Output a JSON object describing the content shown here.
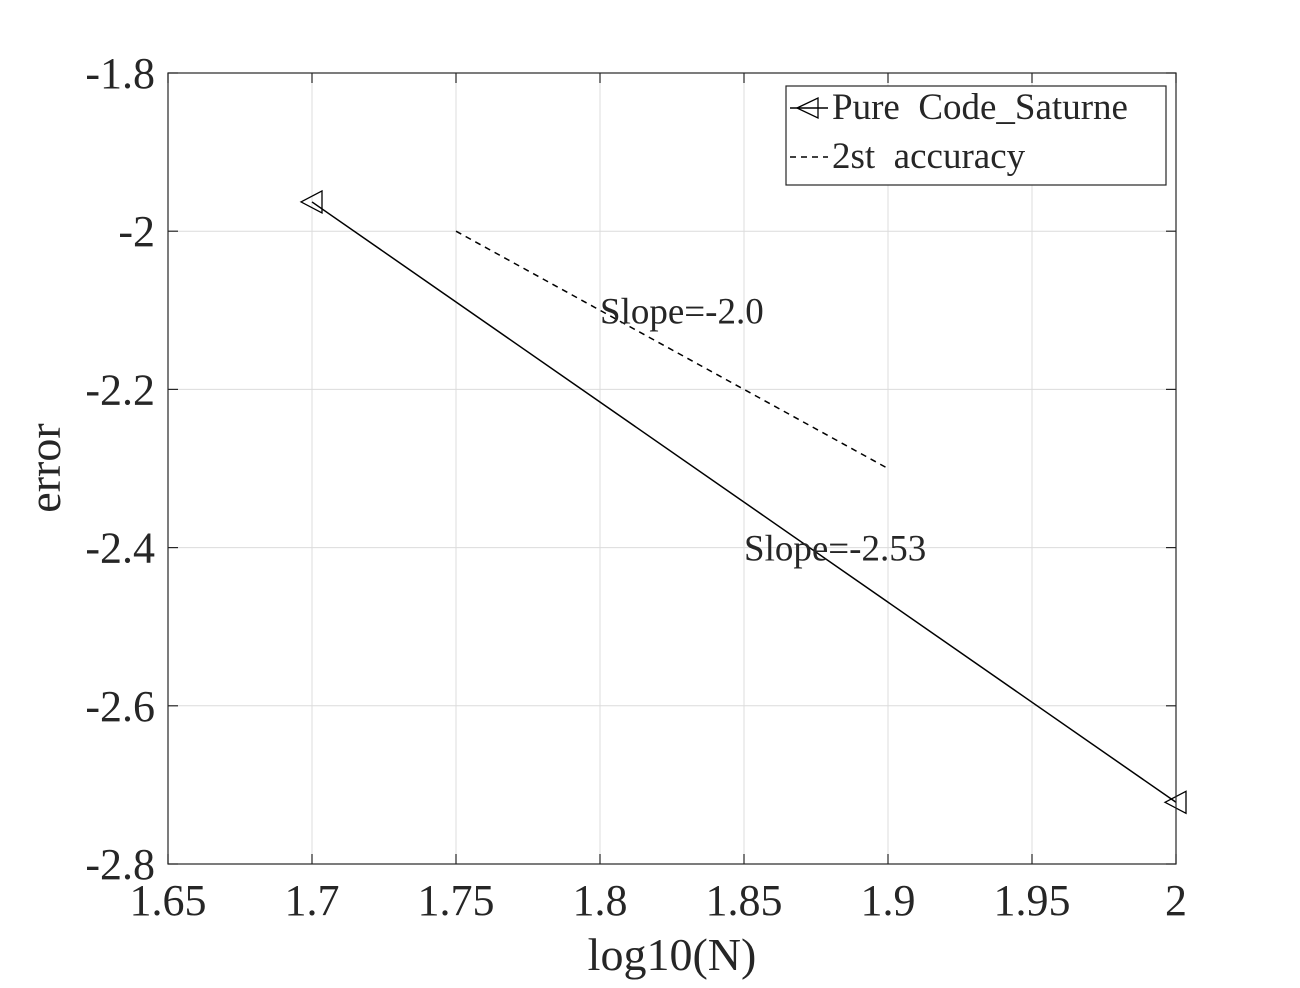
{
  "chart_data": {
    "type": "line",
    "title": "",
    "xlabel": "log10(N)",
    "ylabel": "error",
    "xlim": [
      1.65,
      2.0
    ],
    "ylim": [
      -2.8,
      -1.8
    ],
    "grid": true,
    "xticks": [
      1.65,
      1.7,
      1.75,
      1.8,
      1.85,
      1.9,
      1.95,
      2.0
    ],
    "xtick_labels": [
      "1.65",
      "1.7",
      "1.75",
      "1.8",
      "1.85",
      "1.9",
      "1.95",
      "2"
    ],
    "yticks": [
      -1.8,
      -2.0,
      -2.2,
      -2.4,
      -2.6,
      -2.8
    ],
    "ytick_labels": [
      "-1.8",
      "-2",
      "-2.2",
      "-2.4",
      "-2.6",
      "-2.8"
    ],
    "series": [
      {
        "name": "Pure  Code_Saturne",
        "style": "solid",
        "marker": "triangle-left",
        "color": "#000000",
        "x": [
          1.7,
          2.0
        ],
        "y": [
          -1.963,
          -2.722
        ]
      },
      {
        "name": "2st  accuracy",
        "style": "dashed",
        "marker": "none",
        "color": "#000000",
        "x": [
          1.75,
          1.9
        ],
        "y": [
          -2.0,
          -2.3
        ]
      }
    ],
    "legend_position": "top-right",
    "annotations": [
      {
        "text": "Slope=-2.0",
        "x": 1.8,
        "y": -2.1
      },
      {
        "text": "Slope=-2.53",
        "x": 1.85,
        "y": -2.4
      }
    ]
  }
}
